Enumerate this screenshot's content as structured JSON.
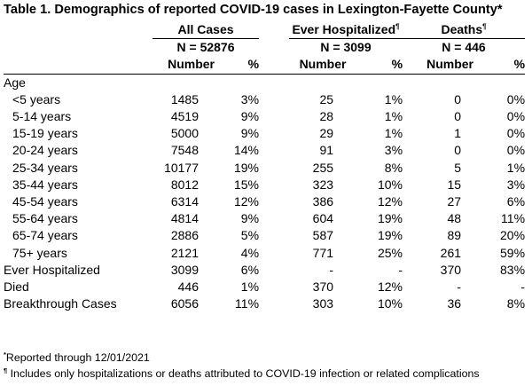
{
  "title": "Table 1. Demographics of reported COVID-19 cases in Lexington-Fayette County",
  "title_mark": "*",
  "groups": [
    {
      "label": "All Cases",
      "mark": "",
      "n": "N = 52876"
    },
    {
      "label": "Ever Hospitalized",
      "mark": "¶",
      "n": "N = 3099"
    },
    {
      "label": "Deaths",
      "mark": "¶",
      "n": "N = 446"
    }
  ],
  "subheaders": {
    "number": "Number",
    "percent": "%"
  },
  "age_section": "Age",
  "age_rows": [
    {
      "label": "<5 years",
      "all_n": "1485",
      "all_p": "3%",
      "hosp_n": "25",
      "hosp_p": "1%",
      "death_n": "0",
      "death_p": "0%"
    },
    {
      "label": "5-14 years",
      "all_n": "4519",
      "all_p": "9%",
      "hosp_n": "28",
      "hosp_p": "1%",
      "death_n": "0",
      "death_p": "0%"
    },
    {
      "label": "15-19 years",
      "all_n": "5000",
      "all_p": "9%",
      "hosp_n": "29",
      "hosp_p": "1%",
      "death_n": "1",
      "death_p": "0%"
    },
    {
      "label": "20-24 years",
      "all_n": "7548",
      "all_p": "14%",
      "hosp_n": "91",
      "hosp_p": "3%",
      "death_n": "0",
      "death_p": "0%"
    },
    {
      "label": "25-34 years",
      "all_n": "10177",
      "all_p": "19%",
      "hosp_n": "255",
      "hosp_p": "8%",
      "death_n": "5",
      "death_p": "1%"
    },
    {
      "label": "35-44 years",
      "all_n": "8012",
      "all_p": "15%",
      "hosp_n": "323",
      "hosp_p": "10%",
      "death_n": "15",
      "death_p": "3%"
    },
    {
      "label": "45-54 years",
      "all_n": "6314",
      "all_p": "12%",
      "hosp_n": "386",
      "hosp_p": "12%",
      "death_n": "27",
      "death_p": "6%"
    },
    {
      "label": "55-64 years",
      "all_n": "4814",
      "all_p": "9%",
      "hosp_n": "604",
      "hosp_p": "19%",
      "death_n": "48",
      "death_p": "11%"
    },
    {
      "label": "65-74 years",
      "all_n": "2886",
      "all_p": "5%",
      "hosp_n": "587",
      "hosp_p": "19%",
      "death_n": "89",
      "death_p": "20%"
    },
    {
      "label": "75+ years",
      "all_n": "2121",
      "all_p": "4%",
      "hosp_n": "771",
      "hosp_p": "25%",
      "death_n": "261",
      "death_p": "59%"
    }
  ],
  "other_rows": [
    {
      "label": "Ever Hospitalized",
      "all_n": "3099",
      "all_p": "6%",
      "hosp_n": "-",
      "hosp_p": "-",
      "death_n": "370",
      "death_p": "83%"
    },
    {
      "label": "Died",
      "all_n": "446",
      "all_p": "1%",
      "hosp_n": "370",
      "hosp_p": "12%",
      "death_n": "-",
      "death_p": "-"
    },
    {
      "label": "Breakthrough Cases",
      "all_n": "6056",
      "all_p": "11%",
      "hosp_n": "303",
      "hosp_p": "10%",
      "death_n": "36",
      "death_p": "8%"
    }
  ],
  "footnotes": [
    {
      "mark": "*",
      "text": "Reported through 12/01/2021"
    },
    {
      "mark": "¶",
      "text": " Includes only hospitalizations or deaths attributed to COVID-19 infection or related complications"
    }
  ]
}
